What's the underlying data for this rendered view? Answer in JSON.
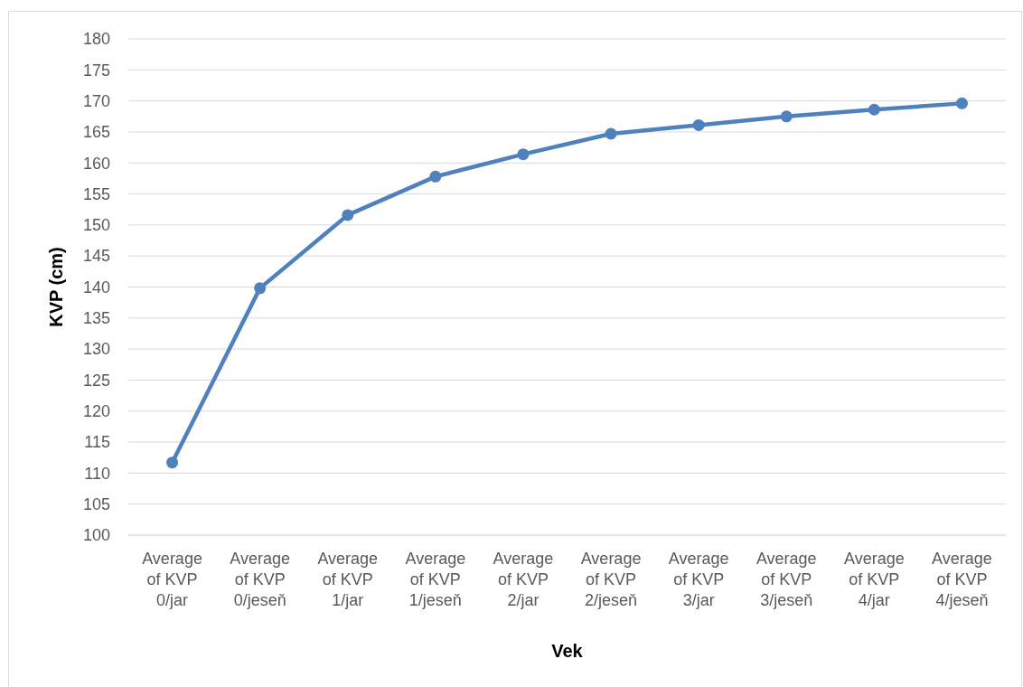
{
  "chart_data": {
    "type": "line",
    "xlabel": "Vek",
    "ylabel": "KVP (cm)",
    "categories": [
      "Average of KVP 0/jar",
      "Average of KVP 0/jeseň",
      "Average of KVP 1/jar",
      "Average of KVP 1/jeseň",
      "Average of KVP 2/jar",
      "Average of KVP 2/jeseň",
      "Average of KVP 3/jar",
      "Average of KVP 3/jeseň",
      "Average of KVP 4/jar",
      "Average of KVP 4/jeseň"
    ],
    "series": [
      {
        "color": "#4f81bd",
        "values": [
          111.7,
          139.8,
          151.6,
          157.8,
          161.4,
          164.7,
          166.1,
          167.5,
          168.6,
          169.6
        ]
      }
    ],
    "ylim": [
      100,
      180
    ],
    "yticks": [
      100,
      105,
      110,
      115,
      120,
      125,
      130,
      135,
      140,
      145,
      150,
      155,
      160,
      165,
      170,
      175,
      180
    ],
    "grid": "y",
    "marker": "circle",
    "line_style": "solid"
  }
}
